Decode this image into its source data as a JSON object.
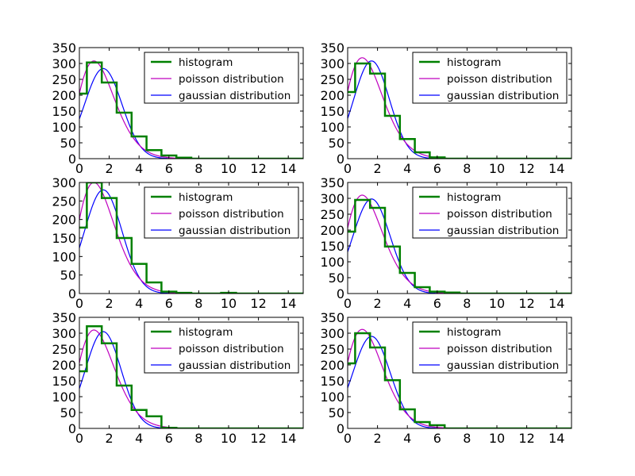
{
  "chart_data": {
    "type": "line",
    "layout": {
      "rows": 3,
      "cols": 2
    },
    "legend_position": "upper right",
    "grid": false,
    "colors": {
      "histogram": "#008000",
      "poisson": "#bf00bf",
      "gaussian": "#0000ff"
    },
    "legend_labels": [
      "histogram",
      "poisson distribution",
      "gaussian distribution"
    ],
    "subplots": [
      {
        "xlim": [
          0,
          15
        ],
        "ylim": [
          0,
          350
        ],
        "xticks": [
          "0",
          "2",
          "4",
          "6",
          "8",
          "10",
          "12",
          "14"
        ],
        "yticks": [
          "0",
          "50",
          "100",
          "150",
          "200",
          "250",
          "300",
          "350"
        ],
        "legend": [
          "histogram",
          "poisson distribution",
          "gaussian distribution"
        ],
        "histogram": {
          "bin_edges": [
            0,
            0.5,
            1.5,
            2.5,
            3.5,
            4.5,
            5.5,
            6.5,
            7.5
          ],
          "counts": [
            205,
            303,
            240,
            145,
            70,
            27,
            10,
            3
          ]
        },
        "poisson": {
          "lambda": 1.5,
          "peak": 308
        },
        "gaussian": {
          "mu": 1.6,
          "sigma": 1.25,
          "peak": 284
        }
      },
      {
        "xlim": [
          0,
          15
        ],
        "ylim": [
          0,
          350
        ],
        "xticks": [
          "0",
          "2",
          "4",
          "6",
          "8",
          "10",
          "12",
          "14"
        ],
        "yticks": [
          "0",
          "50",
          "100",
          "150",
          "200",
          "250",
          "300",
          "350"
        ],
        "legend": [
          "histogram",
          "poisson distribution",
          "gaussian distribution"
        ],
        "histogram": {
          "bin_edges": [
            0,
            0.5,
            1.5,
            2.5,
            3.5,
            4.5,
            5.5,
            6.5
          ],
          "counts": [
            210,
            300,
            268,
            135,
            62,
            20,
            4
          ]
        },
        "poisson": {
          "lambda": 1.5,
          "peak": 318
        },
        "gaussian": {
          "mu": 1.6,
          "sigma": 1.2,
          "peak": 308
        }
      },
      {
        "xlim": [
          0,
          15
        ],
        "ylim": [
          0,
          300
        ],
        "xticks": [
          "0",
          "2",
          "4",
          "6",
          "8",
          "10",
          "12",
          "14"
        ],
        "yticks": [
          "0",
          "50",
          "100",
          "150",
          "200",
          "250",
          "300"
        ],
        "legend": [
          "histogram",
          "poisson distribution",
          "gaussian distribution"
        ],
        "histogram": {
          "bin_edges": [
            0,
            0.5,
            1.5,
            2.5,
            3.5,
            4.5,
            5.5,
            6.5,
            7.5,
            8.5,
            9.5,
            10.5,
            11.5
          ],
          "counts": [
            178,
            300,
            258,
            150,
            80,
            30,
            5,
            2,
            0,
            0,
            2,
            0
          ]
        },
        "poisson": {
          "lambda": 1.5,
          "peak": 300
        },
        "gaussian": {
          "mu": 1.6,
          "sigma": 1.25,
          "peak": 280
        }
      },
      {
        "xlim": [
          0,
          15
        ],
        "ylim": [
          0,
          350
        ],
        "xticks": [
          "0",
          "2",
          "4",
          "6",
          "8",
          "10",
          "12",
          "14"
        ],
        "yticks": [
          "0",
          "50",
          "100",
          "150",
          "200",
          "250",
          "300",
          "350"
        ],
        "legend": [
          "histogram",
          "poisson distribution",
          "gaussian distribution"
        ],
        "histogram": {
          "bin_edges": [
            0,
            0.5,
            1.5,
            2.5,
            3.5,
            4.5,
            5.5,
            6.5,
            7.5
          ],
          "counts": [
            195,
            295,
            270,
            148,
            65,
            20,
            6,
            3
          ]
        },
        "poisson": {
          "lambda": 1.5,
          "peak": 310
        },
        "gaussian": {
          "mu": 1.6,
          "sigma": 1.25,
          "peak": 298
        }
      },
      {
        "xlim": [
          0,
          15
        ],
        "ylim": [
          0,
          350
        ],
        "xticks": [
          "0",
          "2",
          "4",
          "6",
          "8",
          "10",
          "12",
          "14"
        ],
        "yticks": [
          "0",
          "50",
          "100",
          "150",
          "200",
          "250",
          "300",
          "350"
        ],
        "legend": [
          "histogram",
          "poisson distribution",
          "gaussian distribution"
        ],
        "histogram": {
          "bin_edges": [
            0,
            0.5,
            1.5,
            2.5,
            3.5,
            4.5,
            5.5,
            6.5
          ],
          "counts": [
            180,
            322,
            268,
            135,
            58,
            38,
            2
          ]
        },
        "poisson": {
          "lambda": 1.5,
          "peak": 310
        },
        "gaussian": {
          "mu": 1.6,
          "sigma": 1.2,
          "peak": 305
        }
      },
      {
        "xlim": [
          0,
          15
        ],
        "ylim": [
          0,
          350
        ],
        "xticks": [
          "0",
          "2",
          "4",
          "6",
          "8",
          "10",
          "12",
          "14"
        ],
        "yticks": [
          "0",
          "50",
          "100",
          "150",
          "200",
          "250",
          "300",
          "350"
        ],
        "legend": [
          "histogram",
          "poisson distribution",
          "gaussian distribution"
        ],
        "histogram": {
          "bin_edges": [
            0,
            0.5,
            1.5,
            2.5,
            3.5,
            4.5,
            5.5,
            6.5
          ],
          "counts": [
            205,
            300,
            255,
            152,
            60,
            20,
            10
          ]
        },
        "poisson": {
          "lambda": 1.5,
          "peak": 312
        },
        "gaussian": {
          "mu": 1.6,
          "sigma": 1.25,
          "peak": 290
        }
      }
    ]
  }
}
